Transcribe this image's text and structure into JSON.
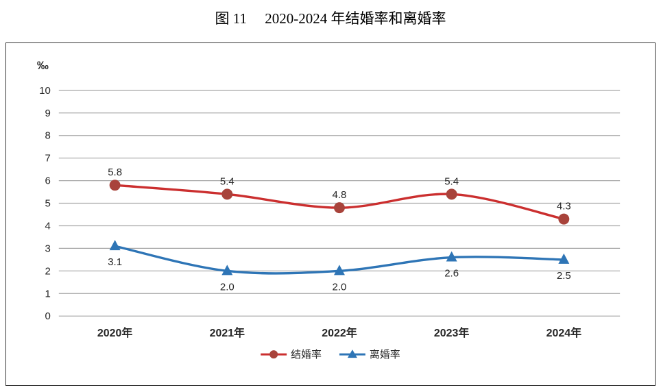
{
  "figure": {
    "title": "图 11     2020-2024 年结婚率和离婚率"
  },
  "chart_data": {
    "type": "line",
    "title": "图 11 2020-2024 年结婚率和离婚率",
    "unit_label": "‰",
    "categories": [
      "2020年",
      "2021年",
      "2022年",
      "2023年",
      "2024年"
    ],
    "series": [
      {
        "name": "结婚率",
        "values": [
          5.8,
          5.4,
          4.8,
          5.4,
          4.3
        ],
        "color": "#cb2f2f",
        "marker_color": "#a8433b",
        "marker": "circle"
      },
      {
        "name": "离婚率",
        "values": [
          3.1,
          2.0,
          2.0,
          2.6,
          2.5
        ],
        "color": "#2e75b6",
        "marker_color": "#2e75b6",
        "marker": "triangle"
      }
    ],
    "ylim": [
      0,
      10
    ],
    "ytick_step": 1,
    "grid": true,
    "legend_position": "bottom",
    "value_label_format": "0.0",
    "text_color": "#262626",
    "grid_color": "#a6a6a6"
  }
}
